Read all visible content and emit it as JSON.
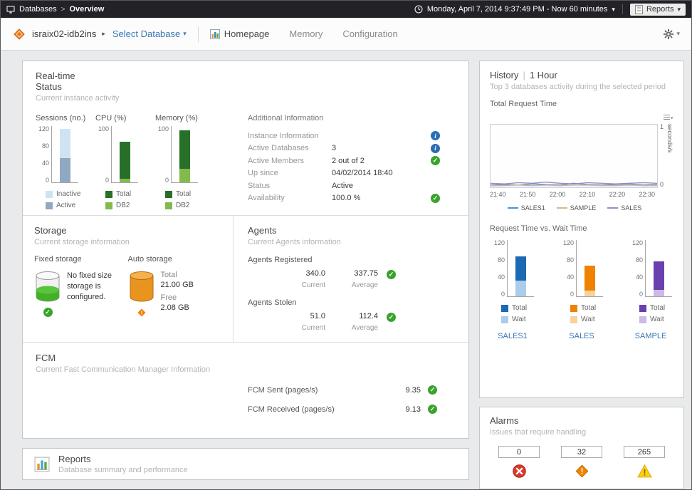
{
  "topbar": {
    "breadcrumb_root": "Databases",
    "breadcrumb_sep": ">",
    "breadcrumb_current": "Overview",
    "time_range": "Monday, April 7, 2014 9:37:49 PM - Now 60 minutes",
    "reports_label": "Reports"
  },
  "toolbar": {
    "instance_name": "israix02-idb2ins",
    "select_database": "Select Database",
    "tab_homepage": "Homepage",
    "tab_memory": "Memory",
    "tab_configuration": "Configuration"
  },
  "realtime": {
    "title": "Real-time",
    "subtitle": "Status",
    "caption": "Current instance activity",
    "additional": {
      "title": "Additional Information",
      "rows": [
        {
          "label": "Instance Information",
          "value": ""
        },
        {
          "label": "Active Databases",
          "value": "3"
        },
        {
          "label": "Active Members",
          "value": "2 out of 2"
        },
        {
          "label": "Up since",
          "value": "04/02/2014 18:40"
        },
        {
          "label": "Status",
          "value": "Active"
        },
        {
          "label": "Availability",
          "value": "100.0 %"
        }
      ]
    }
  },
  "storage": {
    "title": "Storage",
    "caption": "Current storage information",
    "fixed_label": "Fixed storage",
    "fixed_message": "No fixed size storage is configured.",
    "auto_label": "Auto storage",
    "total_label": "Total",
    "total_value": "21.00 GB",
    "free_label": "Free",
    "free_value": "2.08 GB"
  },
  "agents": {
    "title": "Agents",
    "caption": "Current Agents information",
    "registered_label": "Agents Registered",
    "registered_current": "340.0",
    "registered_average": "337.75",
    "stolen_label": "Agents Stolen",
    "stolen_current": "51.0",
    "stolen_average": "112.4",
    "current_label": "Current",
    "average_label": "Average"
  },
  "fcm": {
    "title": "FCM",
    "caption": "Current Fast Communication Manager Information",
    "sent_label": "FCM Sent (pages/s)",
    "sent_value": "9.35",
    "received_label": "FCM Received (pages/s)",
    "received_value": "9.13"
  },
  "reports": {
    "title": "Reports",
    "caption": "Database summary and performance"
  },
  "history": {
    "title": "History",
    "sep": "|",
    "period": "1 Hour",
    "caption": "Top 3 databases activity during the selected period",
    "chart1_label": "Total Request Time",
    "chart2_label": "Request Time vs. Wait Time",
    "db_links": [
      "SALES1",
      "SALES",
      "SAMPLE"
    ]
  },
  "alarms": {
    "title": "Alarms",
    "caption": "Issues that require handling",
    "counts": [
      "0",
      "32",
      "265"
    ]
  },
  "icons": {
    "caret_down": "▾",
    "caret_right": "▸",
    "check": "✓",
    "info": "i"
  },
  "colors": {
    "accent_blue": "#3878b4",
    "status_green": "#3aa32c",
    "warning_orange": "#ef8200",
    "critical_red": "#d93a2b",
    "caution_yellow": "#fdd017"
  },
  "chart_data": [
    {
      "id": "sessions",
      "type": "stacked-bar",
      "title": "Sessions (no.)",
      "ymax": 120,
      "yticks": [
        "120",
        "80",
        "40",
        "0"
      ],
      "segments": [
        {
          "name": "Active",
          "color": "#8fa9c2",
          "value": 52
        },
        {
          "name": "Inactive",
          "color": "#cfe3f2",
          "value": 62
        }
      ],
      "legend": [
        {
          "name": "Inactive",
          "color": "#cfe3f2"
        },
        {
          "name": "Active",
          "color": "#8fa9c2"
        }
      ]
    },
    {
      "id": "cpu",
      "type": "stacked-bar",
      "title": "CPU (%)",
      "ymax": 100,
      "yticks": [
        "100",
        "0"
      ],
      "segments": [
        {
          "name": "DB2",
          "color": "#84ba4c",
          "value": 6
        },
        {
          "name": "Total",
          "color": "#27702a",
          "value": 66
        }
      ],
      "legend": [
        {
          "name": "Total",
          "color": "#27702a"
        },
        {
          "name": "DB2",
          "color": "#84ba4c"
        }
      ]
    },
    {
      "id": "memory",
      "type": "stacked-bar",
      "title": "Memory (%)",
      "ymax": 100,
      "yticks": [
        "100",
        "0"
      ],
      "segments": [
        {
          "name": "DB2",
          "color": "#84ba4c",
          "value": 24
        },
        {
          "name": "Total",
          "color": "#27702a",
          "value": 69
        }
      ],
      "legend": [
        {
          "name": "Total",
          "color": "#27702a"
        },
        {
          "name": "DB2",
          "color": "#84ba4c"
        }
      ]
    },
    {
      "id": "request-time",
      "type": "line",
      "title": "Total Request Time",
      "ylabel": "seconds/s",
      "ymax": 1,
      "yticks": [
        "1",
        "0"
      ],
      "x": [
        "21:40",
        "21:50",
        "22:00",
        "22:10",
        "22:20",
        "22:30"
      ],
      "series": [
        {
          "name": "SALES1",
          "color": "#4a90d9",
          "fill": true,
          "values": [
            0.02,
            0.03,
            0.02,
            0.04,
            0.03,
            0.02,
            0.05,
            0.03,
            0.02,
            0.03,
            0.04,
            0.02,
            0.03
          ]
        },
        {
          "name": "SAMPLE",
          "color": "#d9b48f",
          "values": [
            0.01,
            0.01,
            0.02,
            0.01,
            0.02,
            0.01,
            0.02,
            0.02,
            0.01,
            0.01,
            0.02,
            0.01,
            0.01
          ]
        },
        {
          "name": "SALES",
          "color": "#9c8ac8",
          "values": [
            0.05,
            0.04,
            0.06,
            0.05,
            0.07,
            0.05,
            0.04,
            0.06,
            0.05,
            0.04,
            0.05,
            0.06,
            0.05
          ]
        }
      ]
    },
    {
      "id": "rt-sales1",
      "type": "stacked-bar",
      "ymax": 120,
      "yticks": [
        "120",
        "80",
        "40",
        "0"
      ],
      "segments": [
        {
          "name": "Wait",
          "color": "#a9cdea",
          "value": 34
        },
        {
          "name": "Total",
          "color": "#1a69b2",
          "value": 51
        }
      ],
      "legend": [
        {
          "name": "Total",
          "color": "#1a69b2"
        },
        {
          "name": "Wait",
          "color": "#a9cdea"
        }
      ]
    },
    {
      "id": "rt-sales",
      "type": "stacked-bar",
      "ymax": 120,
      "yticks": [
        "120",
        "80",
        "40",
        "0"
      ],
      "segments": [
        {
          "name": "Wait",
          "color": "#f8d29c",
          "value": 12
        },
        {
          "name": "Total",
          "color": "#ef8200",
          "value": 53
        }
      ],
      "legend": [
        {
          "name": "Total",
          "color": "#ef8200"
        },
        {
          "name": "Wait",
          "color": "#f8d29c"
        }
      ]
    },
    {
      "id": "rt-sample",
      "type": "stacked-bar",
      "ymax": 120,
      "yticks": [
        "120",
        "80",
        "40",
        "0"
      ],
      "segments": [
        {
          "name": "Wait",
          "color": "#cbbae6",
          "value": 14
        },
        {
          "name": "Total",
          "color": "#6a3fae",
          "value": 61
        }
      ],
      "legend": [
        {
          "name": "Total",
          "color": "#6a3fae"
        },
        {
          "name": "Wait",
          "color": "#cbbae6"
        }
      ]
    }
  ]
}
